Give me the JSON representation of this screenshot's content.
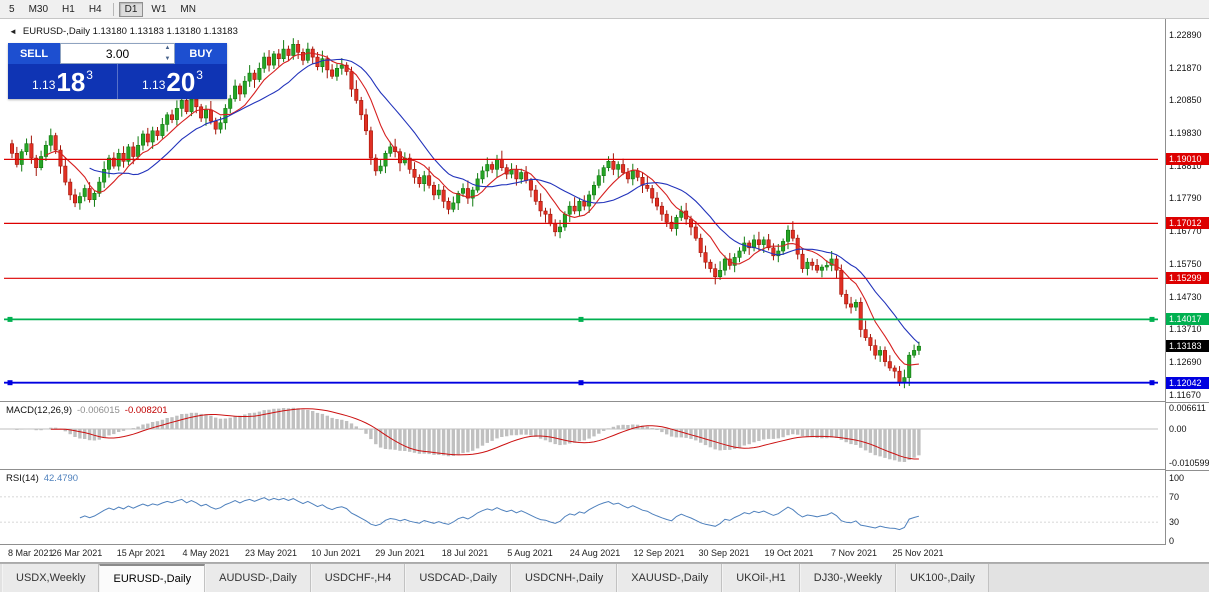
{
  "toolbar": {
    "timeframes": [
      {
        "label": "5",
        "active": false
      },
      {
        "label": "M30",
        "active": false
      },
      {
        "label": "H1",
        "active": false
      },
      {
        "label": "H4",
        "active": false
      },
      {
        "sep": true
      },
      {
        "label": "D1",
        "active": true
      },
      {
        "label": "W1",
        "active": false
      },
      {
        "label": "MN",
        "active": false
      }
    ]
  },
  "chart_header": {
    "info": "EURUSD-,Daily 1.13180 1.13183 1.13180 1.13183",
    "collapse_icon": "◄"
  },
  "one_click": {
    "sell_label": "SELL",
    "buy_label": "BUY",
    "lot": "3.00",
    "spin_up": "▲",
    "spin_down": "▼",
    "sell_price": {
      "prefix": "1.13",
      "big": "18",
      "sup": "3"
    },
    "buy_price": {
      "prefix": "1.13",
      "big": "20",
      "sup": "3"
    }
  },
  "macd_panel": {
    "name": "MACD(12,26,9)",
    "main_value": "-0.006015",
    "signal_value": "-0.008201"
  },
  "rsi_panel": {
    "name": "RSI(14)",
    "value": "42.4790"
  },
  "tabs": {
    "items": [
      {
        "label": "USDX,Weekly",
        "active": false
      },
      {
        "label": "EURUSD-,Daily",
        "active": true
      },
      {
        "label": "AUDUSD-,Daily",
        "active": false
      },
      {
        "label": "USDCHF-,H4",
        "active": false
      },
      {
        "label": "USDCAD-,Daily",
        "active": false
      },
      {
        "label": "USDCNH-,Daily",
        "active": false
      },
      {
        "label": "XAUUSD-,Daily",
        "active": false
      },
      {
        "label": "UKOil-,H1",
        "active": false
      },
      {
        "label": "DJ30-,Weekly",
        "active": false
      },
      {
        "label": "UK100-,Daily",
        "active": false
      }
    ]
  },
  "chart_data": {
    "type": "candlestick",
    "symbol": "EURUSD-",
    "period": "Daily",
    "x_labels": [
      "8 Mar 2021",
      "26 Mar 2021",
      "15 Apr 2021",
      "4 May 2021",
      "23 May 2021",
      "10 Jun 2021",
      "29 Jun 2021",
      "18 Jul 2021",
      "5 Aug 2021",
      "24 Aug 2021",
      "12 Sep 2021",
      "30 Sep 2021",
      "19 Oct 2021",
      "7 Nov 2021",
      "25 Nov 2021"
    ],
    "y_axis": {
      "ticks": [
        "1.22890",
        "1.21870",
        "1.20850",
        "1.19830",
        "1.18810",
        "1.17790",
        "1.16770",
        "1.15750",
        "1.14730",
        "1.13710",
        "1.12690",
        "1.11670"
      ],
      "min": 1.114,
      "max": 1.232
    },
    "candles": {
      "first_open": 1.195,
      "up_color": "#26a426",
      "up_border": "#0f7a0f",
      "down_color": "#e03024",
      "down_border": "#a31408",
      "wick_top_pattern": [
        12,
        20,
        8,
        16,
        25,
        10,
        18,
        14,
        22,
        9,
        15,
        28,
        11,
        19,
        13
      ],
      "wick_bottom_pattern": [
        15,
        9,
        22,
        11,
        18,
        26,
        8,
        14,
        20,
        12,
        24,
        10,
        16,
        13,
        21
      ],
      "closes": [
        1.192,
        1.1885,
        1.1925,
        1.195,
        1.1905,
        1.1875,
        1.191,
        1.1945,
        1.1975,
        1.193,
        1.188,
        1.183,
        1.179,
        1.1765,
        1.1785,
        1.181,
        1.1775,
        1.1795,
        1.183,
        1.187,
        1.1905,
        1.188,
        1.192,
        1.1895,
        1.194,
        1.191,
        1.1945,
        1.198,
        1.1955,
        1.199,
        1.1975,
        1.201,
        1.204,
        1.2025,
        1.206,
        1.2085,
        1.205,
        1.209,
        1.2065,
        1.203,
        1.2055,
        1.202,
        1.1995,
        1.2015,
        1.206,
        1.209,
        1.213,
        1.2105,
        1.2145,
        1.217,
        1.215,
        1.2185,
        1.222,
        1.2195,
        1.223,
        1.2215,
        1.2245,
        1.2225,
        1.226,
        1.2235,
        1.221,
        1.2245,
        1.222,
        1.219,
        1.2215,
        1.218,
        1.216,
        1.2185,
        1.2195,
        1.2175,
        1.212,
        1.2085,
        1.204,
        1.199,
        1.1905,
        1.1865,
        1.188,
        1.192,
        1.194,
        1.1925,
        1.189,
        1.1905,
        1.187,
        1.1845,
        1.1825,
        1.185,
        1.182,
        1.179,
        1.1805,
        1.177,
        1.1745,
        1.1765,
        1.1795,
        1.181,
        1.178,
        1.1805,
        1.184,
        1.1865,
        1.1885,
        1.187,
        1.19,
        1.1875,
        1.1855,
        1.187,
        1.184,
        1.186,
        1.1835,
        1.1805,
        1.177,
        1.174,
        1.173,
        1.17,
        1.1675,
        1.169,
        1.173,
        1.1755,
        1.174,
        1.177,
        1.1755,
        1.179,
        1.182,
        1.185,
        1.1875,
        1.1895,
        1.187,
        1.1885,
        1.186,
        1.184,
        1.1865,
        1.1845,
        1.182,
        1.181,
        1.178,
        1.1755,
        1.173,
        1.1705,
        1.1685,
        1.172,
        1.174,
        1.1715,
        1.169,
        1.1655,
        1.161,
        1.158,
        1.156,
        1.1535,
        1.1555,
        1.159,
        1.157,
        1.1595,
        1.1615,
        1.164,
        1.1625,
        1.165,
        1.1635,
        1.165,
        1.1625,
        1.16,
        1.1615,
        1.1645,
        1.168,
        1.1655,
        1.1605,
        1.156,
        1.158,
        1.157,
        1.1555,
        1.1565,
        1.157,
        1.159,
        1.1555,
        1.148,
        1.145,
        1.144,
        1.1455,
        1.137,
        1.1345,
        1.132,
        1.129,
        1.1305,
        1.127,
        1.125,
        1.124,
        1.1205,
        1.122,
        1.129,
        1.1305,
        1.1318
      ]
    },
    "moving_averages": [
      {
        "name": "fast",
        "period": 8,
        "color": "#d62020"
      },
      {
        "name": "slow",
        "period": 17,
        "color": "#2233bb"
      }
    ],
    "levels": [
      {
        "price": 1.1901,
        "label": "1.19010",
        "color": "#dd0000",
        "selected": false
      },
      {
        "price": 1.17012,
        "label": "1.17012",
        "color": "#dd0000",
        "selected": false
      },
      {
        "price": 1.15299,
        "label": "1.15299",
        "color": "#dd0000",
        "selected": false
      },
      {
        "price": 1.14017,
        "label": "1.14017",
        "color": "#00b050",
        "selected": true
      },
      {
        "price": 1.12042,
        "label": "1.12042",
        "color": "#0000e0",
        "selected": true
      }
    ],
    "current_price": {
      "label": "1.13183",
      "price": 1.13183,
      "bg": "#000000"
    },
    "macd": {
      "fast": 12,
      "slow": 26,
      "signal": 9,
      "hist_color": "#c0c0c0",
      "signal_color": "#cc1111",
      "axis": [
        {
          "label": "0.006611",
          "value": 0.006611
        },
        {
          "label": "0.00",
          "value": 0
        },
        {
          "label": "-0.010599",
          "value": -0.010599
        }
      ]
    },
    "rsi": {
      "period": 14,
      "color": "#4f81bd",
      "levels": [
        70,
        30
      ],
      "axis": [
        {
          "label": "100",
          "value": 100
        },
        {
          "label": "70",
          "value": 70
        },
        {
          "label": "30",
          "value": 30
        },
        {
          "label": "0",
          "value": 0
        }
      ]
    }
  }
}
